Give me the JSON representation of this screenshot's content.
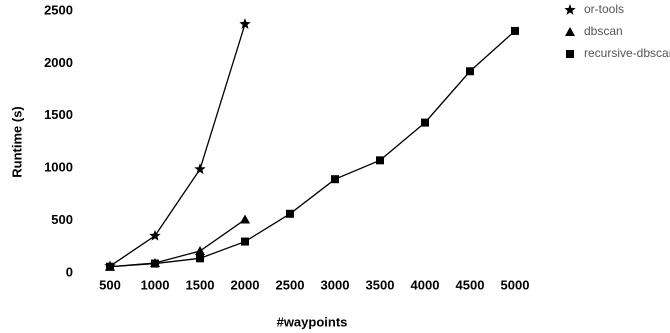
{
  "chart_data": {
    "type": "line",
    "xlabel": "#waypoints",
    "ylabel": "Runtime (s)",
    "xlim": [
      300,
      5200
    ],
    "xticks": [
      500,
      1000,
      1500,
      2000,
      2500,
      3000,
      3500,
      4000,
      4500,
      5000
    ],
    "ylim": [
      0,
      2500
    ],
    "yticks": [
      0,
      500,
      1000,
      1500,
      2000,
      2500
    ],
    "grid": false,
    "legend": "right",
    "series": [
      {
        "name": "or-tools",
        "color": "#000000",
        "marker": "star",
        "x": [
          500,
          1000,
          1500,
          2000
        ],
        "values": [
          65,
          355,
          990,
          2375
        ]
      },
      {
        "name": "dbscan",
        "color": "#000000",
        "marker": "triangle",
        "x": [
          500,
          1000,
          1500,
          2000
        ],
        "values": [
          60,
          95,
          210,
          510
        ]
      },
      {
        "name": "recursive-dbscan",
        "color": "#000000",
        "marker": "square",
        "x": [
          500,
          1000,
          1500,
          2000,
          2500,
          3000,
          3500,
          4000,
          4500,
          5000
        ],
        "values": [
          60,
          90,
          140,
          300,
          565,
          895,
          1075,
          1435,
          1925,
          2310
        ]
      }
    ]
  }
}
